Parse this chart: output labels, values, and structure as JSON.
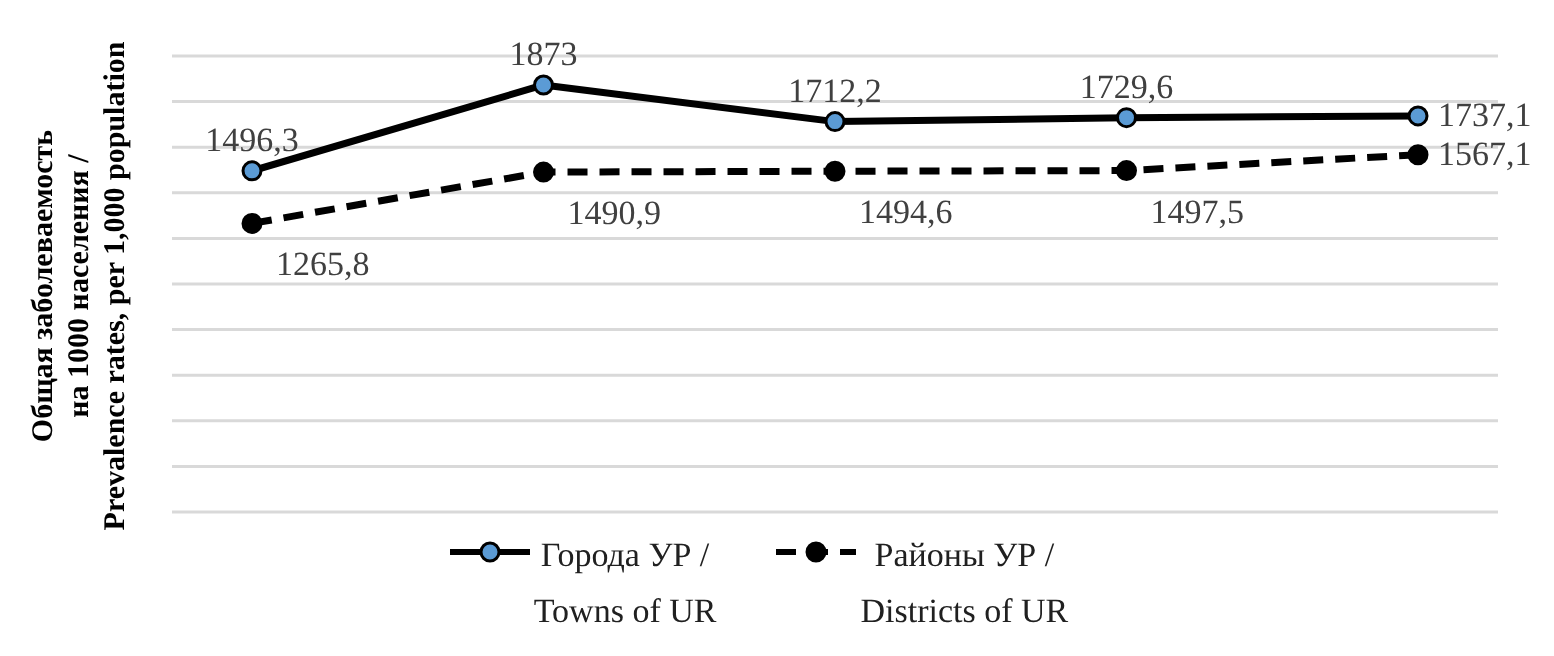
{
  "chart_data": {
    "type": "line",
    "ylabel": "Общая заболеваемость\nна 1000 населения  /\nPrevalence rates, per 1,000 population",
    "categories": [
      null,
      null,
      null,
      null,
      null
    ],
    "series": [
      {
        "name": "Города УР /\nTowns of UR",
        "color": "#000000",
        "colors": [
          "#5b9bd5",
          "#5b9bd5",
          "#5b9bd5",
          "#5b9bd5",
          "#5b9bd5"
        ],
        "line_style": "solid",
        "values": [
          1496.3,
          1873,
          1712.2,
          1729.6,
          1737.1
        ],
        "value_labels": [
          "1496,3",
          "1873",
          "1712,2",
          "1729,6",
          "1737,1"
        ]
      },
      {
        "name": "Районы УР /\nDistricts of UR",
        "color": "#000000",
        "colors": [
          "#000000",
          "#000000",
          "#000000",
          "#000000",
          "#000000"
        ],
        "line_style": "dashed",
        "values": [
          1265.8,
          1490.9,
          1494.6,
          1497.5,
          1567.1
        ],
        "value_labels": [
          "1265,8",
          "1490,9",
          "1494,6",
          "1497,5",
          "1567,1"
        ]
      }
    ],
    "ylim": [
      0,
      2000
    ],
    "grid": "y",
    "legend": "bottom",
    "marker": "circle",
    "tick_labels": false
  }
}
